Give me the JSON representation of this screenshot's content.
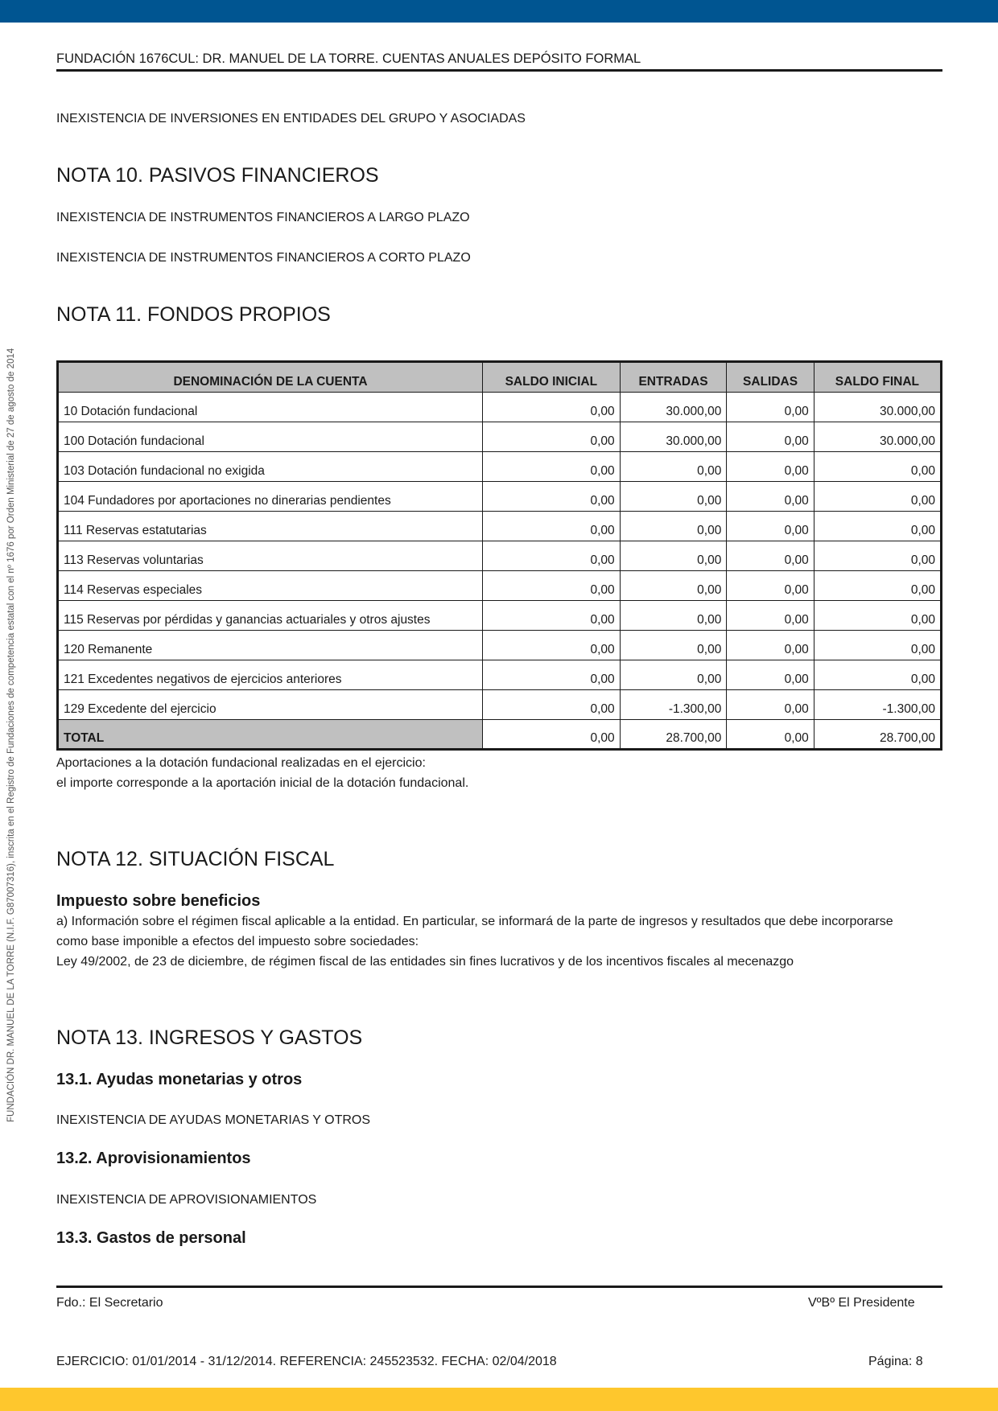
{
  "header": {
    "title": "FUNDACIÓN 1676CUL: DR. MANUEL DE LA TORRE. CUENTAS ANUALES DEPÓSITO FORMAL"
  },
  "side_text": "FUNDACIÓN DR. MANUEL DE LA TORRE (N.I.F. G87007316), inscrita en el Registro de Fundaciones de competencia estatal con el nº 1676 por Orden Ministerial de 27 de agosto de 2014",
  "inversiones": "INEXISTENCIA DE INVERSIONES EN ENTIDADES DEL GRUPO Y ASOCIADAS",
  "nota10": {
    "title": "NOTA 10. PASIVOS FINANCIEROS",
    "line1": "INEXISTENCIA DE INSTRUMENTOS FINANCIEROS A LARGO PLAZO",
    "line2": "INEXISTENCIA DE INSTRUMENTOS FINANCIEROS A CORTO PLAZO"
  },
  "nota11": {
    "title": "NOTA 11. FONDOS PROPIOS",
    "table": {
      "headers": [
        "DENOMINACIÓN DE LA CUENTA",
        "SALDO INICIAL",
        "ENTRADAS",
        "SALIDAS",
        "SALDO FINAL"
      ],
      "rows": [
        [
          "10 Dotación fundacional",
          "0,00",
          "30.000,00",
          "0,00",
          "30.000,00"
        ],
        [
          "100 Dotación fundacional",
          "0,00",
          "30.000,00",
          "0,00",
          "30.000,00"
        ],
        [
          "103 Dotación fundacional no exigida",
          "0,00",
          "0,00",
          "0,00",
          "0,00"
        ],
        [
          "104 Fundadores por aportaciones no dinerarias pendientes",
          "0,00",
          "0,00",
          "0,00",
          "0,00"
        ],
        [
          "111 Reservas estatutarias",
          "0,00",
          "0,00",
          "0,00",
          "0,00"
        ],
        [
          "113 Reservas voluntarias",
          "0,00",
          "0,00",
          "0,00",
          "0,00"
        ],
        [
          "114 Reservas especiales",
          "0,00",
          "0,00",
          "0,00",
          "0,00"
        ],
        [
          "115 Reservas por pérdidas y ganancias actuariales y otros ajustes",
          "0,00",
          "0,00",
          "0,00",
          "0,00"
        ],
        [
          "120 Remanente",
          "0,00",
          "0,00",
          "0,00",
          "0,00"
        ],
        [
          "121 Excedentes negativos de ejercicios anteriores",
          "0,00",
          "0,00",
          "0,00",
          "0,00"
        ],
        [
          "129 Excedente del ejercicio",
          "0,00",
          "-1.300,00",
          "0,00",
          "-1.300,00"
        ]
      ],
      "total": [
        "TOTAL",
        "0,00",
        "28.700,00",
        "0,00",
        "28.700,00"
      ]
    },
    "note1": "Aportaciones a la dotación fundacional realizadas en el ejercicio:",
    "note2": "el importe  corresponde a la aportación inicial de la dotación fundacional."
  },
  "nota12": {
    "title": "NOTA 12. SITUACIÓN FISCAL",
    "subtitle": "Impuesto sobre beneficios",
    "p1": "a) Información sobre el régimen fiscal aplicable a la entidad. En particular, se informará de la parte de ingresos y resultados que debe incorporarse",
    "p2": "como base imponible a efectos del impuesto sobre sociedades:",
    "p3": "Ley 49/2002, de 23 de diciembre, de régimen fiscal de las entidades sin fines lucrativos y de los incentivos fiscales al mecenazgo"
  },
  "nota13": {
    "title": "NOTA 13. INGRESOS Y GASTOS",
    "s1": "13.1. Ayudas monetarias y otros",
    "s1text": "INEXISTENCIA DE AYUDAS MONETARIAS Y OTROS",
    "s2": "13.2. Aprovisionamientos",
    "s2text": "INEXISTENCIA DE APROVISIONAMIENTOS",
    "s3": "13.3. Gastos de personal"
  },
  "footer": {
    "secretario": "Fdo.: El Secretario",
    "presidente": "VºBº El Presidente",
    "ejercicio": "EJERCICIO: 01/01/2014 - 31/12/2014. REFERENCIA: 245523532. FECHA: 02/04/2018",
    "pagina": "Página: 8"
  },
  "colors": {
    "top_bar": "#005591",
    "bottom_bar": "#fec72d",
    "table_header": "#c0c0c0"
  }
}
